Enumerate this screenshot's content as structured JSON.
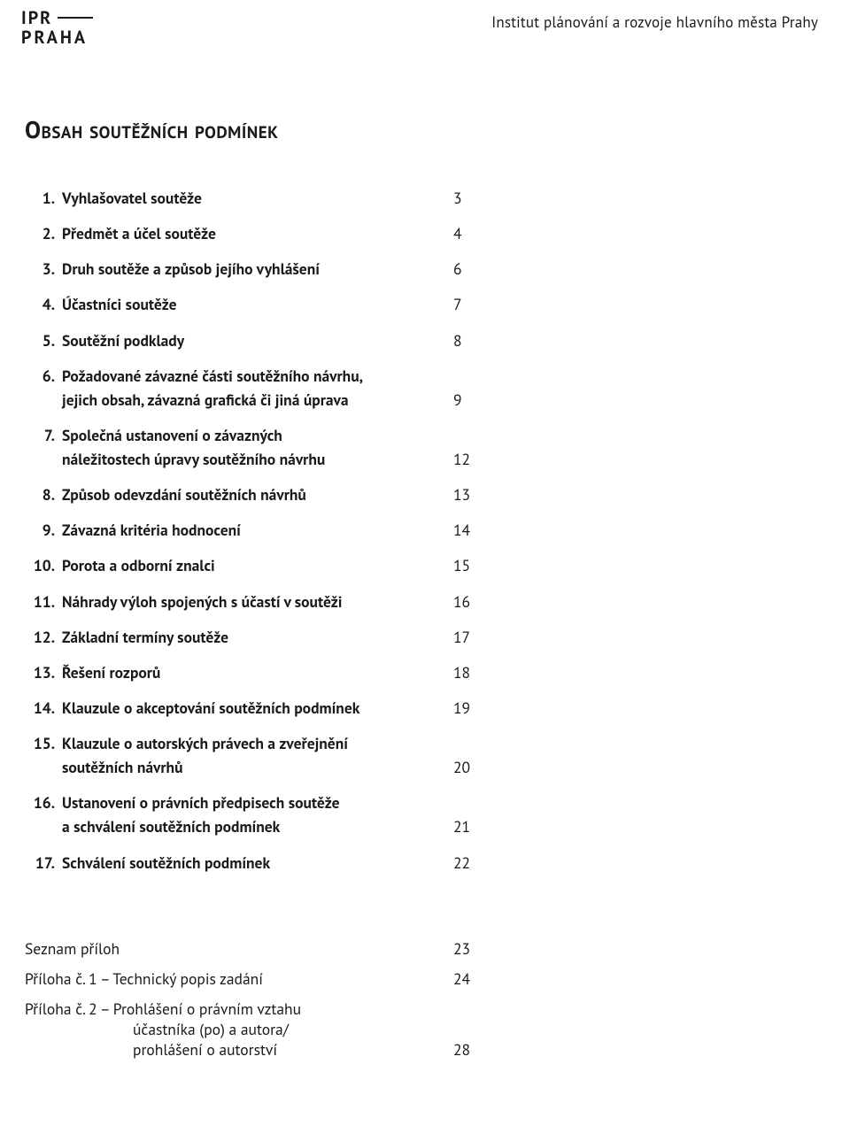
{
  "header": {
    "institution": "Institut plánování a rozvoje hlavního města Prahy",
    "logo_line1": "IPR",
    "logo_line2": "PRAHA"
  },
  "title": "Obsah soutěžních podmínek",
  "toc": [
    {
      "n": "1.",
      "lines": [
        "Vyhlašovatel soutěže"
      ],
      "page": "3"
    },
    {
      "n": "2.",
      "lines": [
        "Předmět a účel soutěže"
      ],
      "page": "4"
    },
    {
      "n": "3.",
      "lines": [
        "Druh soutěže a způsob jejího vyhlášení"
      ],
      "page": "6"
    },
    {
      "n": "4.",
      "lines": [
        "Účastníci soutěže"
      ],
      "page": "7"
    },
    {
      "n": "5.",
      "lines": [
        "Soutěžní podklady"
      ],
      "page": "8"
    },
    {
      "n": "6.",
      "lines": [
        "Požadované závazné části soutěžního návrhu,",
        "jejich obsah, závazná grafická či jiná úprava"
      ],
      "page": "9"
    },
    {
      "n": "7.",
      "lines": [
        "Společná ustanovení o závazných",
        "náležitostech úpravy soutěžního návrhu"
      ],
      "page": "12"
    },
    {
      "n": "8.",
      "lines": [
        "Způsob odevzdání soutěžních návrhů"
      ],
      "page": "13"
    },
    {
      "n": "9.",
      "lines": [
        "Závazná kritéria hodnocení"
      ],
      "page": "14"
    },
    {
      "n": "10.",
      "lines": [
        "Porota a odborní znalci"
      ],
      "page": "15"
    },
    {
      "n": "11.",
      "lines": [
        "Náhrady výloh spojených s účastí v soutěži"
      ],
      "page": "16"
    },
    {
      "n": "12.",
      "lines": [
        "Základní termíny soutěže"
      ],
      "page": "17"
    },
    {
      "n": "13.",
      "lines": [
        "Řešení rozporů"
      ],
      "page": "18"
    },
    {
      "n": "14.",
      "lines": [
        "Klauzule o akceptování soutěžních podmínek"
      ],
      "page": "19"
    },
    {
      "n": "15.",
      "lines": [
        "Klauzule o autorských právech a zveřejnění",
        "soutěžních návrhů"
      ],
      "page": "20"
    },
    {
      "n": "16.",
      "lines": [
        "Ustanovení o právních předpisech soutěže",
        "a schválení soutěžních podmínek"
      ],
      "page": "21"
    },
    {
      "n": "17.",
      "lines": [
        "Schválení soutěžních podmínek"
      ],
      "page": "22"
    }
  ],
  "appendix": {
    "heading": {
      "label": "Seznam příloh",
      "page": "23"
    },
    "items": [
      {
        "lines": [
          "Příloha č. 1 – Technický popis zadání"
        ],
        "page": "24"
      },
      {
        "lines": [
          "Příloha č. 2 – Prohlášení o právním vztahu",
          "účastníka (po) a autora/",
          "prohlášení o autorství"
        ],
        "page": "28",
        "subIndent": true
      }
    ]
  },
  "colors": {
    "text": "#1a1a1a",
    "background": "#ffffff"
  },
  "typography": {
    "body_fontsize_pt": 13,
    "title_fontsize_pt": 20,
    "title_smallcaps": true,
    "bold_weight": 600
  }
}
